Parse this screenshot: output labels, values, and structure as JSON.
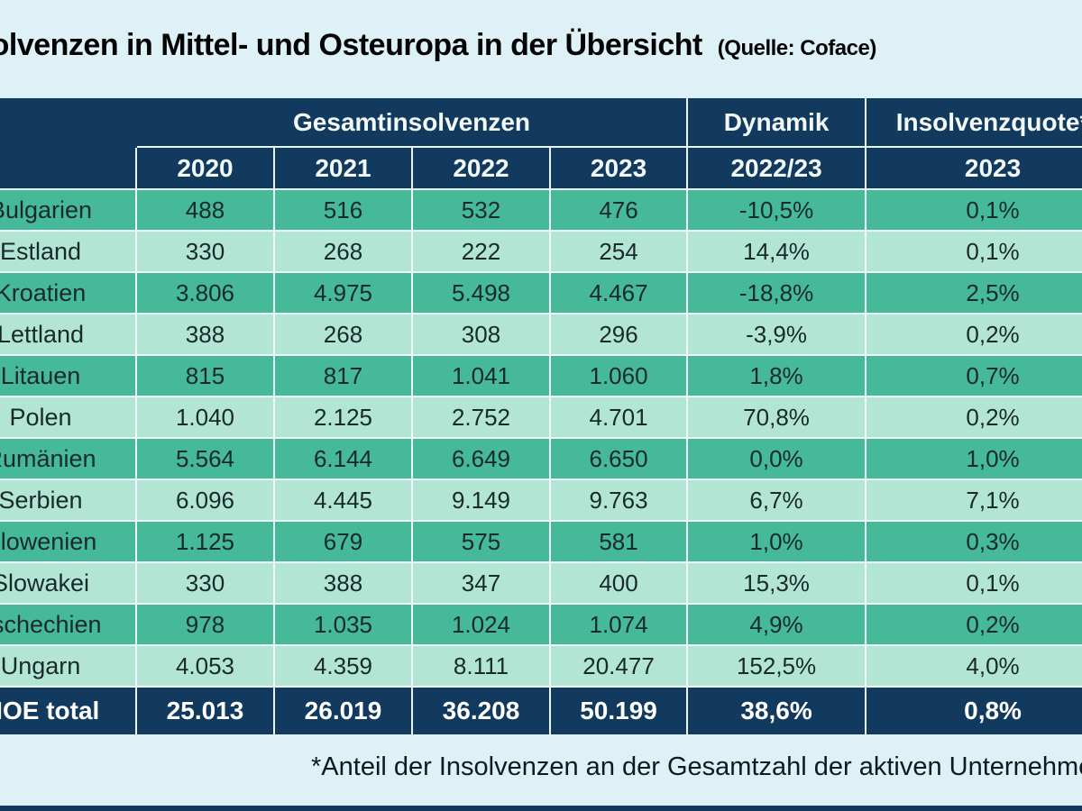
{
  "chart_data": {
    "type": "table",
    "title": "Insolvenzen in Mittel- und Osteuropa in der Übersicht",
    "source": "(Quelle: Coface)",
    "group_headers": {
      "gesamt": "Gesamtinsolvenzen",
      "dynamik": "Dynamik",
      "quote": "Insolvenzquote*"
    },
    "year_headers": [
      "2020",
      "2021",
      "2022",
      "2023",
      "2022/23",
      "2023"
    ],
    "rows": [
      {
        "country": "Bulgarien",
        "values": [
          "488",
          "516",
          "532",
          "476",
          "-10,5%",
          "0,1%"
        ]
      },
      {
        "country": "Estland",
        "values": [
          "330",
          "268",
          "222",
          "254",
          "14,4%",
          "0,1%"
        ]
      },
      {
        "country": "Kroatien",
        "values": [
          "3.806",
          "4.975",
          "5.498",
          "4.467",
          "-18,8%",
          "2,5%"
        ]
      },
      {
        "country": "Lettland",
        "values": [
          "388",
          "268",
          "308",
          "296",
          "-3,9%",
          "0,2%"
        ]
      },
      {
        "country": "Litauen",
        "values": [
          "815",
          "817",
          "1.041",
          "1.060",
          "1,8%",
          "0,7%"
        ]
      },
      {
        "country": "Polen",
        "values": [
          "1.040",
          "2.125",
          "2.752",
          "4.701",
          "70,8%",
          "0,2%"
        ]
      },
      {
        "country": "Rumänien",
        "values": [
          "5.564",
          "6.144",
          "6.649",
          "6.650",
          "0,0%",
          "1,0%"
        ]
      },
      {
        "country": "Serbien",
        "values": [
          "6.096",
          "4.445",
          "9.149",
          "9.763",
          "6,7%",
          "7,1%"
        ]
      },
      {
        "country": "Slowenien",
        "values": [
          "1.125",
          "679",
          "575",
          "581",
          "1,0%",
          "0,3%"
        ]
      },
      {
        "country": "Slowakei",
        "values": [
          "330",
          "388",
          "347",
          "400",
          "15,3%",
          "0,1%"
        ]
      },
      {
        "country": "Tschechien",
        "values": [
          "978",
          "1.035",
          "1.024",
          "1.074",
          "4,9%",
          "0,2%"
        ]
      },
      {
        "country": "Ungarn",
        "values": [
          "4.053",
          "4.359",
          "8.111",
          "20.477",
          "152,5%",
          "4,0%"
        ]
      }
    ],
    "total": {
      "country": "MOE total",
      "values": [
        "25.013",
        "26.019",
        "36.208",
        "50.199",
        "38,6%",
        "0,8%"
      ]
    },
    "footnote": "*Anteil der Insolvenzen an der Gesamtzahl der aktiven Unternehmen",
    "colors": {
      "header_navy": "#123a5e",
      "row_teal_dark": "#45b998",
      "row_teal_light": "#b2e5d3",
      "background": "#def1f7",
      "gridline": "#eef9fa"
    }
  }
}
